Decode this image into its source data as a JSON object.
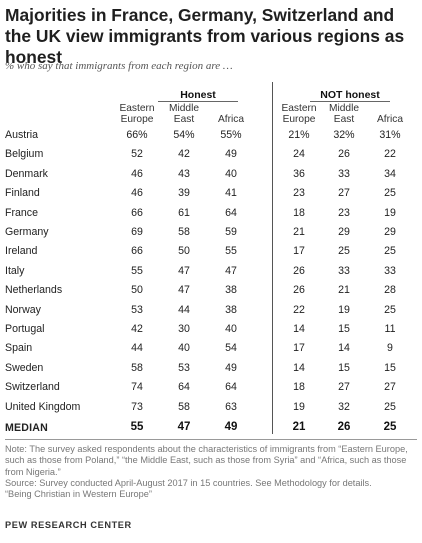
{
  "title": "Majorities in France, Germany, Switzerland and the UK view immigrants from various regions as honest",
  "subtitle": "% who say that immigrants from each region are …",
  "group_labels": {
    "honest": "Honest",
    "not_honest": "NOT honest"
  },
  "column_headers": {
    "honest": [
      "Eastern\nEurope",
      "Middle\nEast",
      "Africa"
    ],
    "not_honest": [
      "Eastern\nEurope",
      "Middle\nEast",
      "Africa"
    ]
  },
  "chart_data": {
    "type": "table",
    "title": "Majorities in France, Germany, Switzerland and the UK view immigrants from various regions as honest",
    "subtitle": "% who say that immigrants from each region are …",
    "columns": [
      "Honest: Eastern Europe",
      "Honest: Middle East",
      "Honest: Africa",
      "NOT honest: Eastern Europe",
      "NOT honest: Middle East",
      "NOT honest: Africa"
    ],
    "rows": [
      {
        "country": "Austria",
        "values": [
          "66%",
          "54%",
          "55%",
          "21%",
          "32%",
          "31%"
        ]
      },
      {
        "country": "Belgium",
        "values": [
          "52",
          "42",
          "49",
          "24",
          "26",
          "22"
        ]
      },
      {
        "country": "Denmark",
        "values": [
          "46",
          "43",
          "40",
          "36",
          "33",
          "34"
        ]
      },
      {
        "country": "Finland",
        "values": [
          "46",
          "39",
          "41",
          "23",
          "27",
          "25"
        ]
      },
      {
        "country": "France",
        "values": [
          "66",
          "61",
          "64",
          "18",
          "23",
          "19"
        ]
      },
      {
        "country": "Germany",
        "values": [
          "69",
          "58",
          "59",
          "21",
          "29",
          "29"
        ]
      },
      {
        "country": "Ireland",
        "values": [
          "66",
          "50",
          "55",
          "17",
          "25",
          "25"
        ]
      },
      {
        "country": "Italy",
        "values": [
          "55",
          "47",
          "47",
          "26",
          "33",
          "33"
        ]
      },
      {
        "country": "Netherlands",
        "values": [
          "50",
          "47",
          "38",
          "26",
          "21",
          "28"
        ]
      },
      {
        "country": "Norway",
        "values": [
          "53",
          "44",
          "38",
          "22",
          "19",
          "25"
        ]
      },
      {
        "country": "Portugal",
        "values": [
          "42",
          "30",
          "40",
          "14",
          "15",
          "11"
        ]
      },
      {
        "country": "Spain",
        "values": [
          "44",
          "40",
          "54",
          "17",
          "14",
          "9"
        ]
      },
      {
        "country": "Sweden",
        "values": [
          "58",
          "53",
          "49",
          "14",
          "15",
          "15"
        ]
      },
      {
        "country": "Switzerland",
        "values": [
          "74",
          "64",
          "64",
          "18",
          "27",
          "27"
        ]
      },
      {
        "country": "United Kingdom",
        "values": [
          "73",
          "58",
          "63",
          "19",
          "32",
          "25"
        ]
      }
    ],
    "median": {
      "label": "MEDIAN",
      "values": [
        "55",
        "47",
        "49",
        "21",
        "26",
        "25"
      ]
    }
  },
  "note": "Note: The survey asked respondents about the characteristics of immigrants from “Eastern Europe, such as those from Poland,” “the Middle East, such as those from Syria” and “Africa, such as those from Nigeria.”",
  "source": "Source: Survey conducted April-August 2017 in 15 countries. See Methodology for details.",
  "report": "“Being Christian in Western Europe”",
  "brand": "PEW RESEARCH CENTER"
}
